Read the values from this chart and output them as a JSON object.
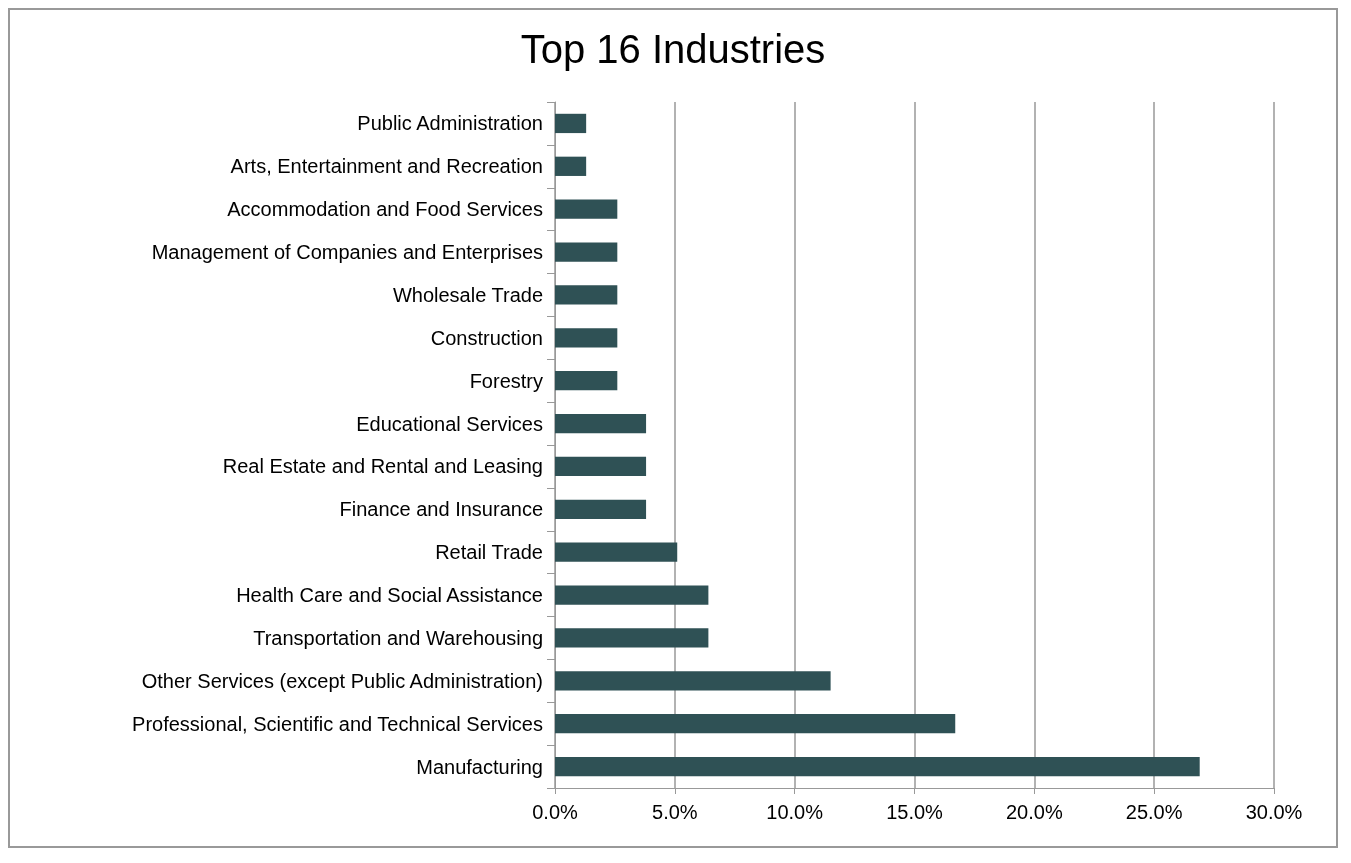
{
  "chart_data": {
    "type": "bar",
    "orientation": "horizontal",
    "title": "Top 16 Industries",
    "categories": [
      "Public Administration",
      "Arts, Entertainment and Recreation",
      "Accommodation and Food Services",
      "Management of Companies and Enterprises",
      "Wholesale Trade",
      "Construction",
      "Forestry",
      "Educational Services",
      "Real Estate and Rental and Leasing",
      "Finance and Insurance",
      "Retail Trade",
      "Health Care and Social Assistance",
      "Transportation and Warehousing",
      "Other Services (except Public Administration)",
      "Professional, Scientific and Technical Services",
      "Manufacturing"
    ],
    "values": [
      1.3,
      1.3,
      2.6,
      2.6,
      2.6,
      2.6,
      2.6,
      3.8,
      3.8,
      3.8,
      5.1,
      6.4,
      6.4,
      11.5,
      16.7,
      26.9
    ],
    "color": "#2f5155",
    "xlim": [
      0,
      30
    ],
    "xticks": [
      {
        "value": 0,
        "label": "0.0%"
      },
      {
        "value": 5,
        "label": "5.0%"
      },
      {
        "value": 10,
        "label": "10.0%"
      },
      {
        "value": 15,
        "label": "15.0%"
      },
      {
        "value": 20,
        "label": "20.0%"
      },
      {
        "value": 25,
        "label": "25.0%"
      },
      {
        "value": 30,
        "label": "30.0%"
      }
    ],
    "grid": "x"
  }
}
